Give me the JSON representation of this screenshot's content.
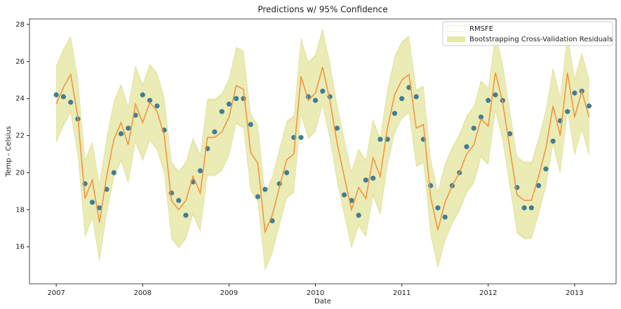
{
  "chart_data": {
    "type": "line",
    "title": "Predictions w/ 95% Confidence",
    "x_label": "Date",
    "y_label": "Temp - Celsius",
    "x": [
      2007.0,
      2007.083,
      2007.167,
      2007.25,
      2007.333,
      2007.417,
      2007.5,
      2007.583,
      2007.667,
      2007.75,
      2007.833,
      2007.917,
      2008.0,
      2008.083,
      2008.167,
      2008.25,
      2008.333,
      2008.417,
      2008.5,
      2008.583,
      2008.667,
      2008.75,
      2008.833,
      2008.917,
      2009.0,
      2009.083,
      2009.167,
      2009.25,
      2009.333,
      2009.417,
      2009.5,
      2009.583,
      2009.667,
      2009.75,
      2009.833,
      2009.917,
      2010.0,
      2010.083,
      2010.167,
      2010.25,
      2010.333,
      2010.417,
      2010.5,
      2010.583,
      2010.667,
      2010.75,
      2010.833,
      2010.917,
      2011.0,
      2011.083,
      2011.167,
      2011.25,
      2011.333,
      2011.417,
      2011.5,
      2011.583,
      2011.667,
      2011.75,
      2011.833,
      2011.917,
      2012.0,
      2012.083,
      2012.167,
      2012.25,
      2012.333,
      2012.417,
      2012.5,
      2012.583,
      2012.667,
      2012.75,
      2012.833,
      2012.917,
      2013.0,
      2013.083,
      2013.167
    ],
    "series": [
      {
        "color": "#3f7d95",
        "style": "points",
        "values": [
          24.2,
          24.1,
          23.8,
          22.9,
          19.4,
          18.4,
          18.1,
          19.1,
          20.0,
          22.1,
          22.4,
          23.1,
          24.2,
          23.9,
          23.6,
          22.3,
          18.9,
          18.5,
          17.7,
          19.5,
          20.1,
          21.3,
          22.2,
          23.3,
          23.7,
          24.0,
          24.0,
          22.6,
          18.7,
          19.1,
          17.4,
          19.4,
          20.0,
          21.9,
          21.9,
          24.1,
          23.9,
          24.4,
          24.1,
          22.4,
          18.8,
          18.5,
          17.7,
          19.6,
          19.7,
          21.8,
          21.8,
          23.2,
          24.0,
          24.6,
          24.1,
          21.8,
          19.3,
          18.1,
          17.6,
          19.3,
          20.0,
          21.4,
          22.4,
          23.0,
          23.9,
          24.2,
          23.9,
          22.1,
          19.2,
          18.1,
          18.1,
          19.3,
          20.2,
          21.7,
          22.8,
          23.3,
          24.3,
          24.4,
          23.6
        ]
      },
      {
        "color": "#f0923a",
        "style": "line",
        "values": [
          23.7,
          24.6,
          25.3,
          23.0,
          18.6,
          19.6,
          17.3,
          19.8,
          21.8,
          22.7,
          21.5,
          23.7,
          22.7,
          23.8,
          23.3,
          22.0,
          18.5,
          18.0,
          18.5,
          19.8,
          18.9,
          21.9,
          21.9,
          22.2,
          23.0,
          24.7,
          24.5,
          21.1,
          20.5,
          16.8,
          17.7,
          19.2,
          20.7,
          21.0,
          25.2,
          23.9,
          24.3,
          25.7,
          23.9,
          21.6,
          19.8,
          18.0,
          19.2,
          18.6,
          20.8,
          19.8,
          22.4,
          24.2,
          25.0,
          25.3,
          22.4,
          22.6,
          18.7,
          16.9,
          18.4,
          19.3,
          20.0,
          21.0,
          21.5,
          22.9,
          22.5,
          25.4,
          23.8,
          21.3,
          18.8,
          18.5,
          18.5,
          19.8,
          21.3,
          23.6,
          22.0,
          25.4,
          23.0,
          24.4,
          23.0
        ]
      }
    ],
    "bands": [
      {
        "name": "RMSFE",
        "color": "#c8c86a",
        "style": "dotted",
        "half_width": 2.0
      },
      {
        "name": "Bootstrapping Cross-Validation Residuals",
        "color": "#e8e8a8",
        "style": "filled",
        "half_width": 2.1
      }
    ],
    "xlim": [
      2006.69,
      2013.48
    ],
    "ylim": [
      14.0,
      28.3
    ],
    "xticks": [
      2007,
      2008,
      2009,
      2010,
      2011,
      2012,
      2013
    ],
    "yticks": [
      16,
      18,
      20,
      22,
      24,
      26,
      28
    ],
    "legend": "upper right"
  }
}
